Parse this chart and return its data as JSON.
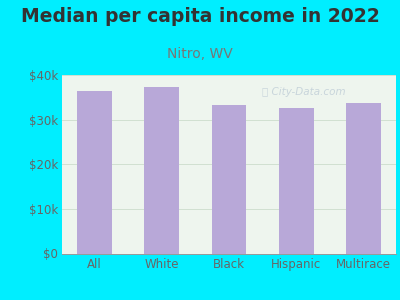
{
  "title": "Median per capita income in 2022",
  "subtitle": "Nitro, WV",
  "categories": [
    "All",
    "White",
    "Black",
    "Hispanic",
    "Multirace"
  ],
  "values": [
    36500,
    37200,
    33200,
    32700,
    33700
  ],
  "bar_color": "#b8a8d8",
  "background_outer": "#00eeff",
  "background_inner": "#eef5ee",
  "title_color": "#333333",
  "subtitle_color": "#777777",
  "tick_color": "#666666",
  "ylim": [
    0,
    40000
  ],
  "yticks": [
    0,
    10000,
    20000,
    30000,
    40000
  ],
  "ytick_labels": [
    "$0",
    "$10k",
    "$20k",
    "$30k",
    "$40k"
  ],
  "title_fontsize": 13.5,
  "subtitle_fontsize": 10,
  "tick_fontsize": 8.5,
  "watermark_color": "#aabbcc",
  "watermark_alpha": 0.55
}
